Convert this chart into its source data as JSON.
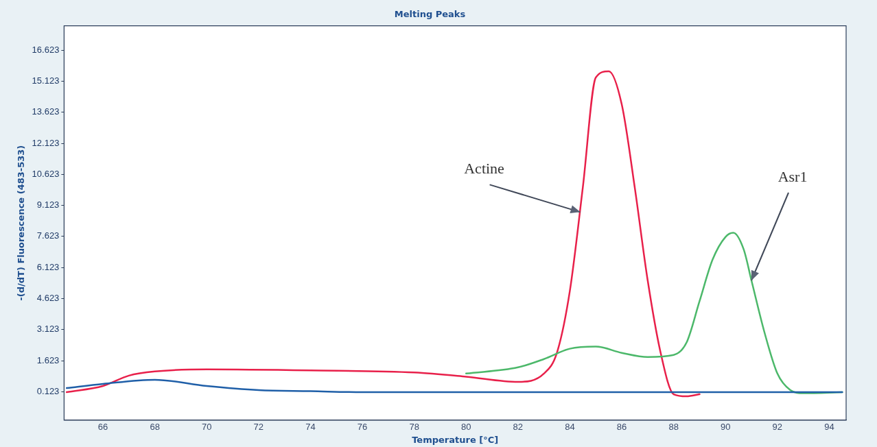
{
  "chart_data": {
    "type": "line",
    "title": "Melting Peaks",
    "xlabel": "Temperature [°C]",
    "ylabel": "-(d/dT) Fluorescence (483-533)",
    "xlim": [
      64.5,
      94.65
    ],
    "xticks": [
      66,
      68,
      70,
      72,
      74,
      76,
      78,
      80,
      82,
      84,
      86,
      88,
      90,
      92,
      94
    ],
    "ylim": [
      -1.25,
      17.8
    ],
    "yticks": [
      0.123,
      1.623,
      3.123,
      4.623,
      6.123,
      7.623,
      9.123,
      10.623,
      12.123,
      13.623,
      15.123,
      16.623
    ],
    "grid": false,
    "legend": false,
    "marker": "none",
    "line_style": "solid",
    "series": [
      {
        "color": "#1f5fa8",
        "x": [
          64.6,
          66,
          68,
          70,
          72,
          74,
          76,
          80,
          84,
          88,
          90,
          94.5
        ],
        "values": [
          0.3,
          0.5,
          0.7,
          0.4,
          0.2,
          0.15,
          0.1,
          0.1,
          0.1,
          0.1,
          0.1,
          0.1
        ]
      },
      {
        "color": "#4cb86a",
        "x": [
          80,
          82,
          83,
          84,
          85,
          86,
          87,
          88,
          88.5,
          89,
          89.5,
          90,
          90.3,
          90.7,
          91,
          91.5,
          92,
          92.5,
          93,
          94.5
        ],
        "values": [
          1.0,
          1.3,
          1.7,
          2.2,
          2.3,
          2.0,
          1.8,
          1.9,
          2.5,
          4.5,
          6.5,
          7.6,
          7.8,
          7.0,
          5.5,
          3.0,
          1.0,
          0.2,
          0.05,
          0.1
        ]
      },
      {
        "color": "#e8204a",
        "x": [
          64.6,
          66,
          67,
          68,
          70,
          74,
          78,
          80,
          82,
          83,
          83.5,
          84,
          84.5,
          85,
          85.5,
          86,
          86.5,
          87,
          87.5,
          88,
          88.5,
          89
        ],
        "values": [
          0.1,
          0.4,
          0.9,
          1.1,
          1.2,
          1.15,
          1.05,
          0.85,
          0.6,
          1.0,
          2.0,
          5.0,
          10.0,
          15.3,
          15.6,
          14.0,
          10.0,
          5.5,
          2.0,
          0.0,
          -0.1,
          0.0
        ]
      }
    ],
    "annotations": [
      {
        "text": "Actine",
        "x": 84.4,
        "y": 8.8
      },
      {
        "text": "Asr1",
        "x": 91,
        "y": 5.5
      }
    ]
  }
}
